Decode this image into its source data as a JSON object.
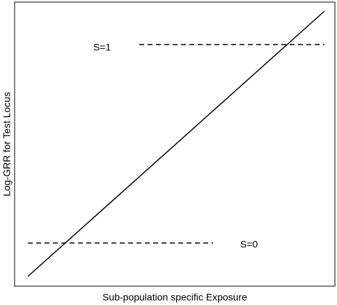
{
  "diagram": {
    "x_label": "Sub-population specific Exposure",
    "y_label": "Log-GRR for Test Locus",
    "lines": [
      {
        "label": "S=1"
      },
      {
        "label": "S=0"
      }
    ]
  }
}
